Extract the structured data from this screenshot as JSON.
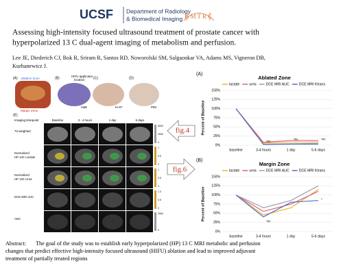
{
  "header": {
    "logo": "UCSF",
    "department": [
      "Department of Radiology",
      "& Biomedical Imaging"
    ],
    "partner": "HMTRC"
  },
  "title": [
    "Assessing high-intensity focused ultrasound treatment of prostate cancer with",
    "hyperpolarized 13 C dual-agent imaging of metabolism and perfusion."
  ],
  "authors": [
    "Lee JE, Diederich CJ, Bok R, Sriram R, Santos RD, Noworolski SM, Salgaonkar VA, Adams MS, Vigneron DB,",
    "Kurhanewicz J."
  ],
  "figure": {
    "panels": [
      "(A)",
      "(B)",
      "(C)",
      "(D)",
      "(E)"
    ],
    "ablation_zone": "Ablation Zone",
    "margin_zone": "Margin Zone",
    "applicator": [
      "HIFU applicator",
      "location"
    ],
    "stains": [
      "H&E",
      "Ki-67",
      "PIM"
    ],
    "timepoint_header": "Imaging timepoint",
    "timepoints": [
      "Baseline",
      "3 - 4 hours",
      "1 day",
      "6 days"
    ],
    "rows": [
      [
        "T2-weighted"
      ],
      [
        "Normalized",
        "HP 13C Lactate"
      ],
      [
        "Normalized",
        "HP 13C Urea"
      ],
      [
        "DCE MRI AUC"
      ],
      [
        "ADC"
      ]
    ],
    "colorbars": [
      [
        "6000",
        "3000",
        "0"
      ],
      [
        "1",
        "0.5",
        "0"
      ],
      [
        "1",
        "0.5",
        "0"
      ],
      [
        "1.0",
        "0.5",
        "0"
      ],
      [
        "2500",
        "0"
      ]
    ]
  },
  "arrows": [
    "fig.4",
    "fig.6"
  ],
  "chart_data": [
    {
      "type": "line",
      "label": "(A)",
      "title": "Ablated Zone",
      "y_label": "Percent of Baseline",
      "categories": [
        "baseline",
        "3-4 hours",
        "1 day",
        "5-6 days"
      ],
      "ylim": [
        0,
        150
      ],
      "yticks": [
        {
          "value": 0,
          "label": "0%"
        },
        {
          "value": 25,
          "label": "25%"
        },
        {
          "value": 50,
          "label": "50%"
        },
        {
          "value": 75,
          "label": "75%"
        },
        {
          "value": 100,
          "label": "100%"
        },
        {
          "value": 125,
          "label": "125%"
        },
        {
          "value": 150,
          "label": "150%"
        }
      ],
      "grid": true,
      "series": [
        {
          "name": "lactate",
          "color": "#f0b429",
          "values": [
            100,
            6,
            9,
            9
          ]
        },
        {
          "name": "urea",
          "color": "#e0607e",
          "values": [
            100,
            8,
            13,
            13
          ]
        },
        {
          "name": "DCE MRI AUC",
          "color": "#9a9cb0",
          "values": [
            100,
            3,
            4,
            5
          ]
        },
        {
          "name": "DCE MRI Ktrans",
          "color": "#4f6fbf",
          "values": [
            100,
            2,
            3,
            3
          ]
        }
      ],
      "annotations": [
        {
          "text": "*#◊",
          "x": "3-4 hours",
          "y": 10
        },
        {
          "text": "*#◊",
          "x": "1 day",
          "y": 15
        },
        {
          "text": "*#◊",
          "x": "5-6 days",
          "y": 15
        }
      ]
    },
    {
      "type": "line",
      "label": "(B)",
      "title": "Margin Zone",
      "y_label": "Percent of Baseline",
      "categories": [
        "baseline",
        "3-4 hours",
        "1 day",
        "5-6 days"
      ],
      "ylim": [
        0,
        150
      ],
      "yticks": [
        {
          "value": 0,
          "label": "0%"
        },
        {
          "value": 25,
          "label": "25%"
        },
        {
          "value": 50,
          "label": "50%"
        },
        {
          "value": 75,
          "label": "75%"
        },
        {
          "value": 100,
          "label": "100%"
        },
        {
          "value": 125,
          "label": "125%"
        },
        {
          "value": 150,
          "label": "150%"
        }
      ],
      "grid": true,
      "series": [
        {
          "name": "lactate",
          "color": "#f0b429",
          "values": [
            100,
            45,
            65,
            115
          ]
        },
        {
          "name": "urea",
          "color": "#e0607e",
          "values": [
            100,
            55,
            75,
            110
          ]
        },
        {
          "name": "DCE MRI AUC",
          "color": "#9a9cb0",
          "values": [
            100,
            65,
            85,
            125
          ]
        },
        {
          "name": "DCE MRI Ktrans",
          "color": "#4f6fbf",
          "values": [
            100,
            40,
            80,
            85
          ]
        }
      ],
      "annotations": [
        {
          "text": "*#◊",
          "x": "3-4 hours",
          "y": 28
        },
        {
          "text": "*",
          "x": "5-6 days",
          "y": 88
        }
      ]
    }
  ],
  "abstract": {
    "label": "Abstract:",
    "lines": [
      "The goal of the study was to establish early hyperpolarized (HP) 13 C MRI metabolic and perfusion",
      "changes that predict effective high-intensity focused ultrasound (HIFU) ablation and lead to improved adjuvant",
      "treatment of partially treated regions"
    ]
  }
}
